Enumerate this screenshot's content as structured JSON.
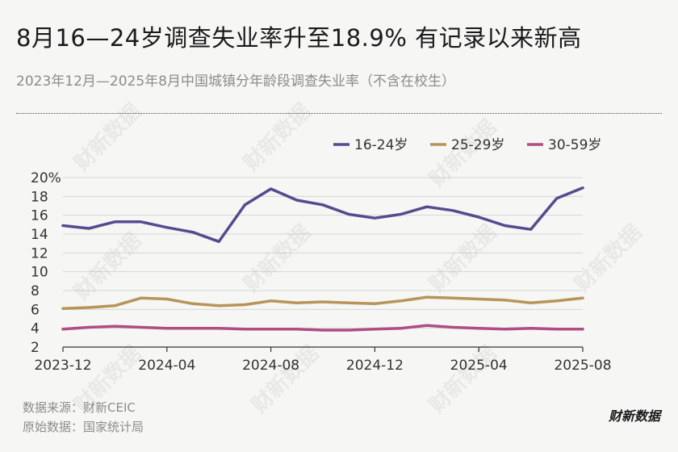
{
  "header": {
    "title": "8月16—24岁调查失业率升至18.9% 有记录以来新高",
    "subtitle": "2023年12月—2025年8月中国城镇分年龄段调查失业率（不含在校生）"
  },
  "footer": {
    "source": "数据来源：财新CEIC",
    "raw_source": "原始数据：国家统计局",
    "brand": "财新数据"
  },
  "watermark_text": "财新数据",
  "chart_data": {
    "type": "line",
    "x": [
      "2023-12",
      "2024-01",
      "2024-02",
      "2024-03",
      "2024-04",
      "2024-05",
      "2024-06",
      "2024-07",
      "2024-08",
      "2024-09",
      "2024-10",
      "2024-11",
      "2024-12",
      "2025-01",
      "2025-02",
      "2025-03",
      "2025-04",
      "2025-05",
      "2025-06",
      "2025-07",
      "2025-08"
    ],
    "x_tick_labels": [
      "2023-12",
      "2024-04",
      "2024-08",
      "2024-12",
      "2025-04",
      "2025-08"
    ],
    "ylim": [
      2,
      20
    ],
    "y_ticks": [
      2,
      4,
      6,
      8,
      10,
      12,
      14,
      16,
      18,
      20
    ],
    "y_top_label": "20%",
    "grid": true,
    "legend_position": "top-right",
    "series": [
      {
        "name": "16-24岁",
        "color": "#574b90",
        "values": [
          14.9,
          14.6,
          15.3,
          15.3,
          14.7,
          14.2,
          13.2,
          17.1,
          18.8,
          17.6,
          17.1,
          16.1,
          15.7,
          16.1,
          16.9,
          16.5,
          15.8,
          14.9,
          14.5,
          17.8,
          18.9
        ]
      },
      {
        "name": "25-29岁",
        "color": "#b8945a",
        "values": [
          6.1,
          6.2,
          6.4,
          7.2,
          7.1,
          6.6,
          6.4,
          6.5,
          6.9,
          6.7,
          6.8,
          6.7,
          6.6,
          6.9,
          7.3,
          7.2,
          7.1,
          7.0,
          6.7,
          6.9,
          7.2
        ]
      },
      {
        "name": "30-59岁",
        "color": "#b04d82",
        "values": [
          3.9,
          4.1,
          4.2,
          4.1,
          4.0,
          4.0,
          4.0,
          3.9,
          3.9,
          3.9,
          3.8,
          3.8,
          3.9,
          4.0,
          4.3,
          4.1,
          4.0,
          3.9,
          4.0,
          3.9,
          3.9
        ]
      }
    ]
  }
}
